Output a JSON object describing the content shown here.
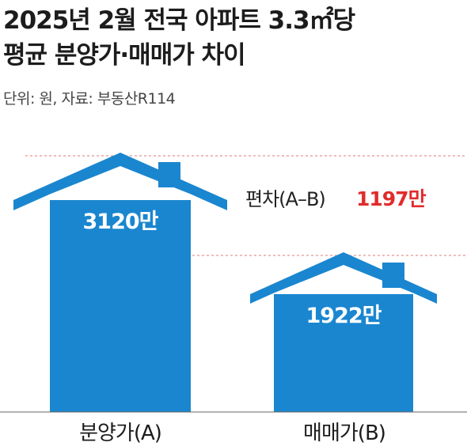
{
  "header": {
    "title_line1": "2025년 2월 전국 아파트 3.3㎡당",
    "title_line2": "평균 분양가·매매가 차이",
    "source": "단위: 원, 자료: 부동산R114"
  },
  "chart_data": {
    "type": "bar",
    "bar_shape": "house",
    "categories": [
      "분양가(A)",
      "매매가(B)"
    ],
    "values": [
      31200000,
      19220000
    ],
    "value_labels": [
      "3120만",
      "1922만"
    ],
    "difference": {
      "label": "편차(A–B)",
      "value": 11970000,
      "value_label": "1197만"
    },
    "unit": "원",
    "reference_lines": "dashed red at top of each bar",
    "colors": {
      "bar": "#1a86cf",
      "difference": "#e02c2c",
      "reference_line": "#e27a7a",
      "axis": "#666666"
    }
  }
}
